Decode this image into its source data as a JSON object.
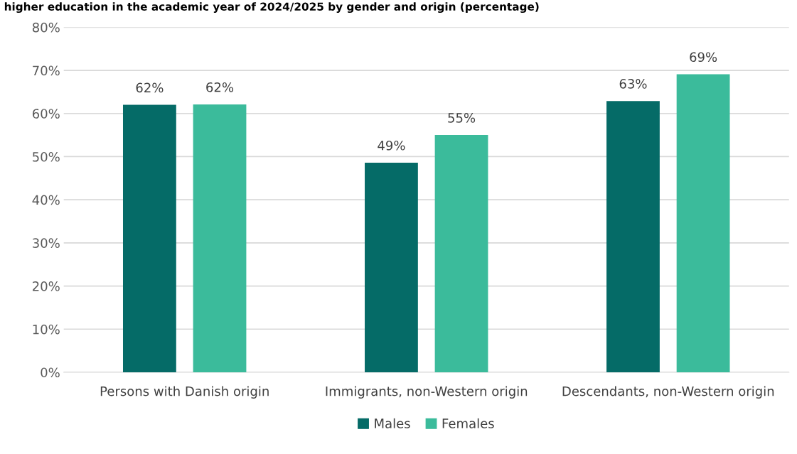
{
  "chart_data": {
    "type": "bar",
    "title": "higher education in the academic year of 2024/2025 by gender and origin (percentage)",
    "categories": [
      "Persons with Danish origin",
      "Immigrants, non-Western origin",
      "Descendants, non-Western origin"
    ],
    "series": [
      {
        "name": "Males",
        "color": "#056b67",
        "values": [
          62,
          48.6,
          62.9
        ],
        "value_labels": [
          "62%",
          "49%",
          "63%"
        ]
      },
      {
        "name": "Females",
        "color": "#3bbb9b",
        "values": [
          62.1,
          55,
          69.1
        ],
        "value_labels": [
          "62%",
          "55%",
          "69%"
        ]
      }
    ],
    "ylim": [
      0,
      80
    ],
    "yticks": [
      {
        "value": 0,
        "label": "0%"
      },
      {
        "value": 10,
        "label": "10%"
      },
      {
        "value": 20,
        "label": "20%"
      },
      {
        "value": 30,
        "label": "30%"
      },
      {
        "value": 40,
        "label": "40%"
      },
      {
        "value": 50,
        "label": "50%"
      },
      {
        "value": 60,
        "label": "60%"
      },
      {
        "value": 70,
        "label": "70%"
      },
      {
        "value": 80,
        "label": "80%"
      }
    ],
    "grid": "y",
    "legend": "bottom"
  }
}
